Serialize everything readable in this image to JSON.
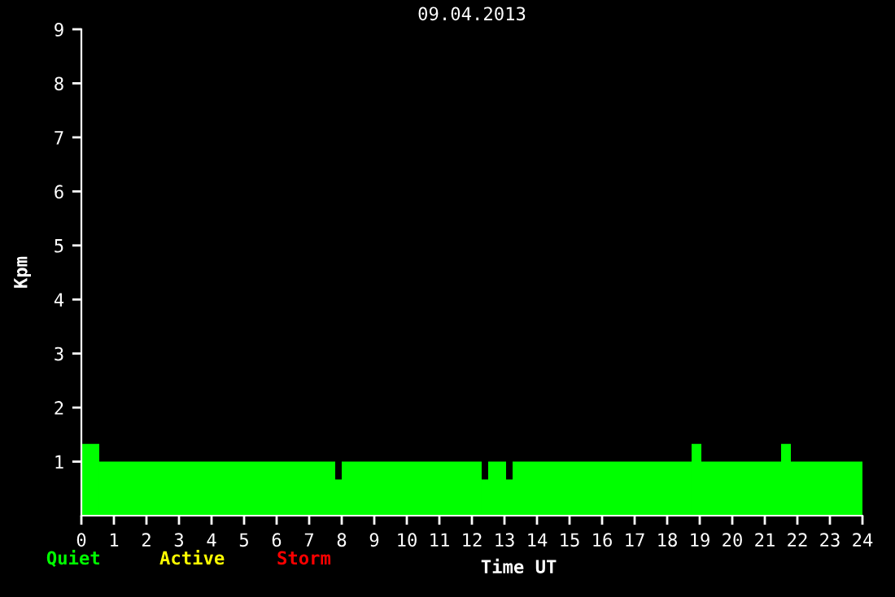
{
  "chart_data": {
    "type": "histogram",
    "title": "09.04.2013",
    "xlabel": "Time UT",
    "ylabel": "Kpm",
    "bins": [
      0,
      0.55,
      7.8,
      8.0,
      12.3,
      12.5,
      13.05,
      13.25,
      18.75,
      19.05,
      21.5,
      21.8,
      24
    ],
    "series": [
      {
        "name": "Quiet",
        "color": "#00ff00",
        "values": [
          1.33,
          1,
          0.67,
          1,
          0.67,
          1,
          0.67,
          1,
          1.33,
          1,
          1.33,
          1
        ]
      }
    ],
    "annotations": [
      "Active",
      "Storm"
    ],
    "xlim": [
      0,
      24
    ],
    "ylim": [
      0,
      9
    ],
    "xticks": [
      0,
      1,
      2,
      3,
      4,
      5,
      6,
      7,
      8,
      9,
      10,
      11,
      12,
      13,
      14,
      15,
      16,
      17,
      18,
      19,
      20,
      21,
      22,
      23,
      24
    ],
    "yticks": [
      1,
      2,
      3,
      4,
      5,
      6,
      7,
      8,
      9
    ],
    "grid": false,
    "legend": "bottom left"
  }
}
